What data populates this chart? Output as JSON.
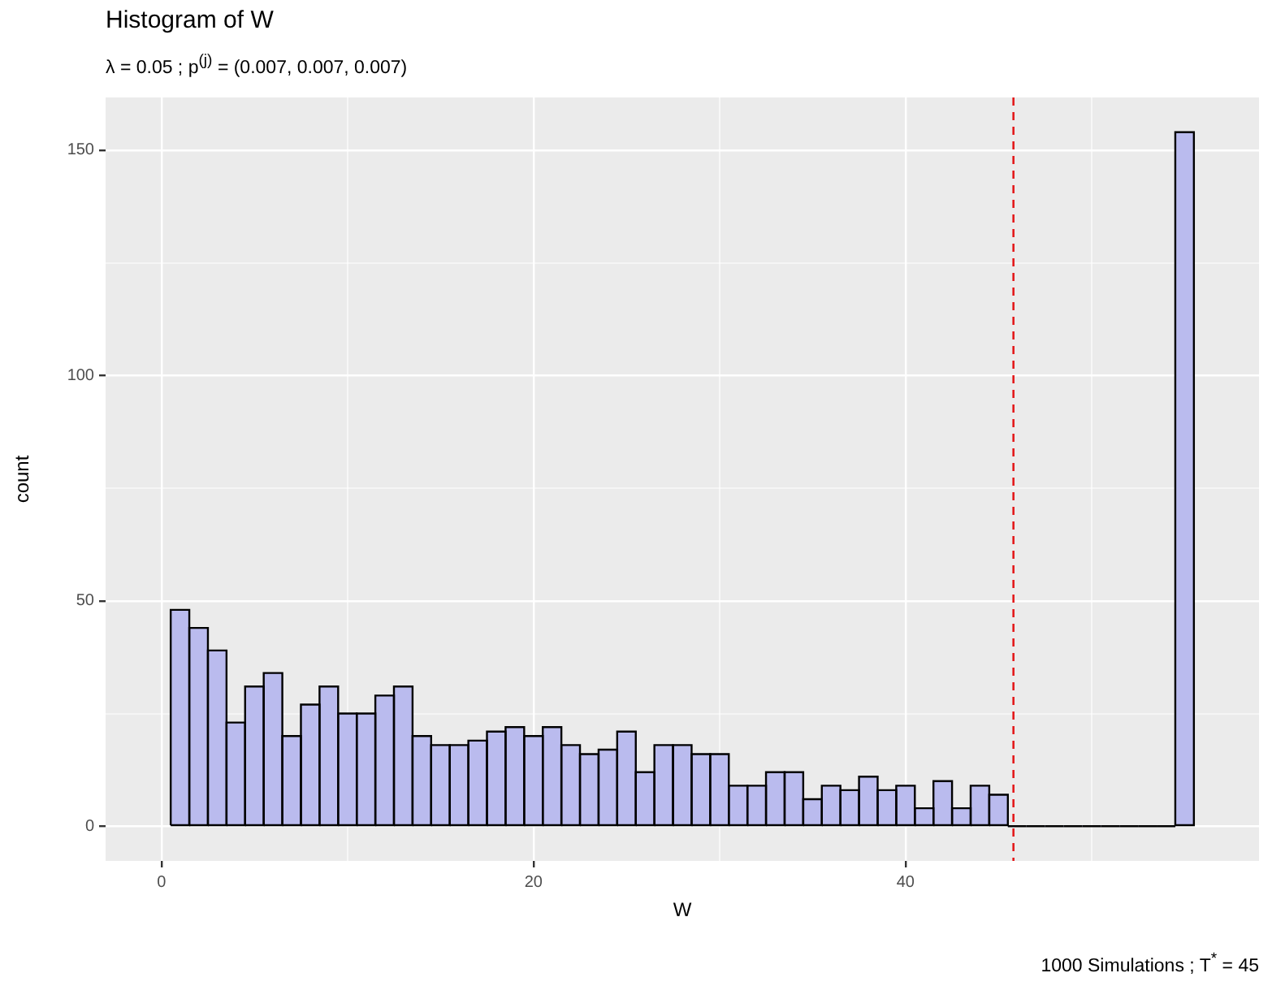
{
  "chart_data": {
    "type": "histogram",
    "title": "Histogram of W",
    "subtitle": "λ =  0.05   ;   p$^{(j)}$ = (0.007, 0.007, 0.007)",
    "xlabel": "W",
    "ylabel": "count",
    "annotations": [
      "1000 Simulations  ;  T$^{*}$ = 45"
    ],
    "bins": [
      0.5,
      1.5,
      2.5,
      3.5,
      4.5,
      5.5,
      6.5,
      7.5,
      8.5,
      9.5,
      10.5,
      11.5,
      12.5,
      13.5,
      14.5,
      15.5,
      16.5,
      17.5,
      18.5,
      19.5,
      20.5,
      21.5,
      22.5,
      23.5,
      24.5,
      25.5,
      26.5,
      27.5,
      28.5,
      29.5,
      30.5,
      31.5,
      32.5,
      33.5,
      34.5,
      35.5,
      36.5,
      37.5,
      38.5,
      39.5,
      40.5,
      41.5,
      42.5,
      43.5,
      44.5,
      45.5,
      46.5,
      47.5,
      48.5,
      49.5,
      50.5,
      51.5,
      52.5,
      53.5,
      54.5,
      55.5
    ],
    "values": [
      48,
      44,
      39,
      23,
      31,
      34,
      20,
      27,
      31,
      25,
      25,
      29,
      31,
      20,
      18,
      18,
      19,
      21,
      22,
      20,
      22,
      18,
      16,
      17,
      21,
      12,
      18,
      18,
      16,
      16,
      9,
      9,
      12,
      12,
      6,
      9,
      8,
      11,
      8,
      9,
      4,
      10,
      4,
      9,
      7,
      0,
      0,
      0,
      0,
      0,
      0,
      0,
      0,
      0,
      154
    ],
    "color": "#babbee",
    "xlim": [
      -3,
      59
    ],
    "ylim": [
      -7.7,
      161.7
    ],
    "xticks": [
      0,
      {
        "value": 10,
        "label": null
      },
      20,
      {
        "value": 30,
        "label": null
      },
      40,
      {
        "value": 50,
        "label": null
      }
    ],
    "yticks": [
      0,
      {
        "value": 25,
        "label": null
      },
      50,
      {
        "value": 75,
        "label": null
      },
      100,
      {
        "value": 125,
        "label": null
      },
      150
    ],
    "grid": true,
    "ref_lines": [
      {
        "axis": "x",
        "value": 45.8,
        "color": "#e31a1c",
        "line_style": "dashed"
      }
    ]
  }
}
